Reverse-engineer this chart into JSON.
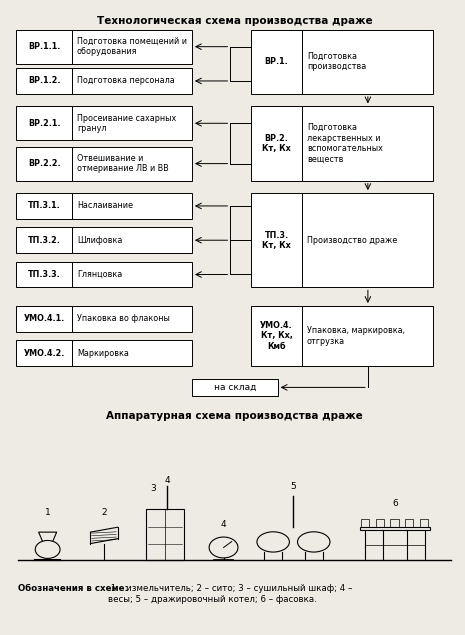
{
  "title_top": "Технологическая схема производства драже",
  "title_bottom": "Аппаратурная схема производства драже",
  "legend_bold": "Обозначения в схеме:",
  "legend_rest": " 1 – измельчитель; 2 – сито; 3 – сушильный шкаф; 4 –\nвесы; 5 – дражировочный котел; 6 – фасовка.",
  "left_boxes": [
    {
      "label": "ВР.1.1.",
      "text": "Подготовка помещений и\nоборудования"
    },
    {
      "label": "ВР.1.2.",
      "text": "Подготовка персонала"
    },
    {
      "label": "ВР.2.1.",
      "text": "Просеивание сахарных\nгранул"
    },
    {
      "label": "ВР.2.2.",
      "text": "Отвешивание и\nотмеривание ЛВ и ВВ"
    },
    {
      "label": "ТП.3.1.",
      "text": "Наслаивание"
    },
    {
      "label": "ТП.3.2.",
      "text": "Шлифовка"
    },
    {
      "label": "ТП.3.3.",
      "text": "Глянцовка"
    },
    {
      "label": "УМО.4.1.",
      "text": "Упаковка во флаконы"
    },
    {
      "label": "УМО.4.2.",
      "text": "Маркировка"
    }
  ],
  "right_boxes": [
    {
      "label": "ВР.1.",
      "text": "Подготовка\nпроизводства",
      "rows": [
        0,
        1
      ]
    },
    {
      "label": "ВР.2.\nКт, Кх",
      "text": "Подготовка\nлекарственных и\nвспомогательных\nвеществ",
      "rows": [
        2,
        3
      ]
    },
    {
      "label": "ТП.3.\nКт, Кх",
      "text": "Производство драже",
      "rows": [
        4,
        5,
        6
      ]
    },
    {
      "label": "УМО.4.\nКт, Кх,\nКмб",
      "text": "Упаковка, маркировка,\nотгрузка",
      "rows": [
        7,
        8
      ]
    }
  ],
  "sklad_text": "на склад",
  "bg_color": "#eeebe5"
}
